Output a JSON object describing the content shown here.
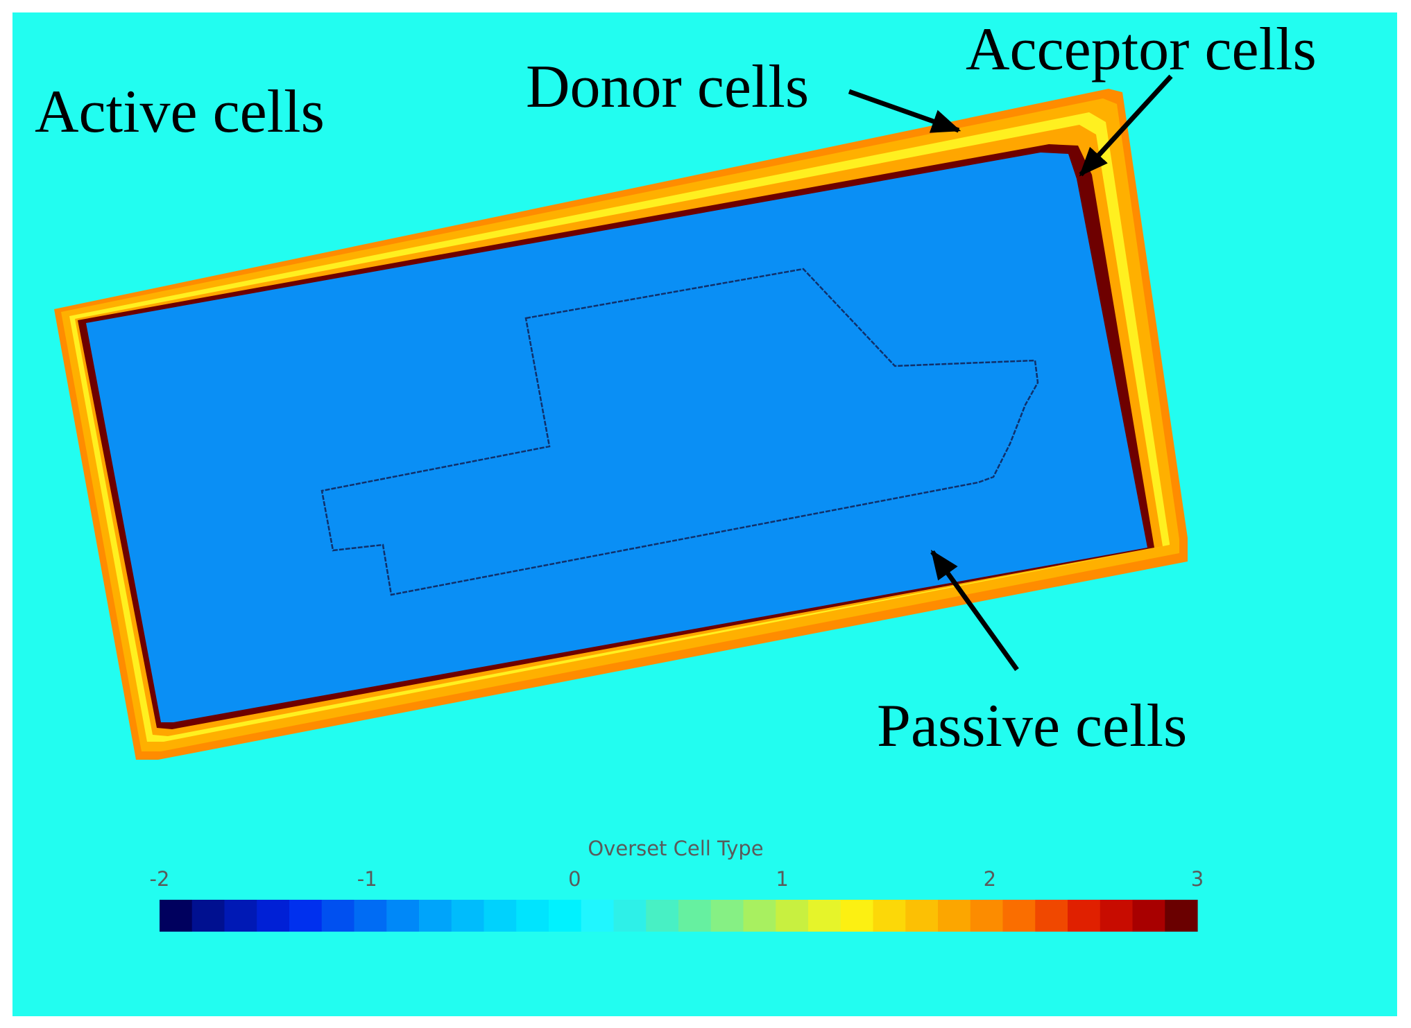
{
  "labels": {
    "active": "Active cells",
    "donor": "Donor cells",
    "acceptor": "Acceptor cells",
    "passive": "Passive cells"
  },
  "colorbar": {
    "title": "Overset Cell Type",
    "ticks": [
      "-2",
      "-1",
      "0",
      "1",
      "2",
      "3"
    ],
    "min": -2,
    "max": 3,
    "segments": 32,
    "colors": [
      "#00005e",
      "#001090",
      "#0019b5",
      "#0020d6",
      "#0030ee",
      "#0050f0",
      "#006cf4",
      "#0088f8",
      "#00a4fa",
      "#00bcfc",
      "#00d2fd",
      "#00e4fe",
      "#00f2ff",
      "#20f6ff",
      "#2ef0e8",
      "#48f0c4",
      "#66f0a0",
      "#86f084",
      "#a8f060",
      "#c8f040",
      "#e6f42a",
      "#fcf012",
      "#fcd808",
      "#fcc004",
      "#fca600",
      "#fc8c00",
      "#fa6e00",
      "#f04800",
      "#e02000",
      "#c80c00",
      "#a80000",
      "#6a0000"
    ]
  },
  "colors": {
    "background": "#22fdf0",
    "passive": "#0a8ff5",
    "acceptor": "#6e0000",
    "donor_yellow": "#fff020",
    "donor_orange": "#ffb000",
    "outer_orange": "#ff8c00",
    "outline": "#10306a",
    "arrow": "#000000"
  }
}
